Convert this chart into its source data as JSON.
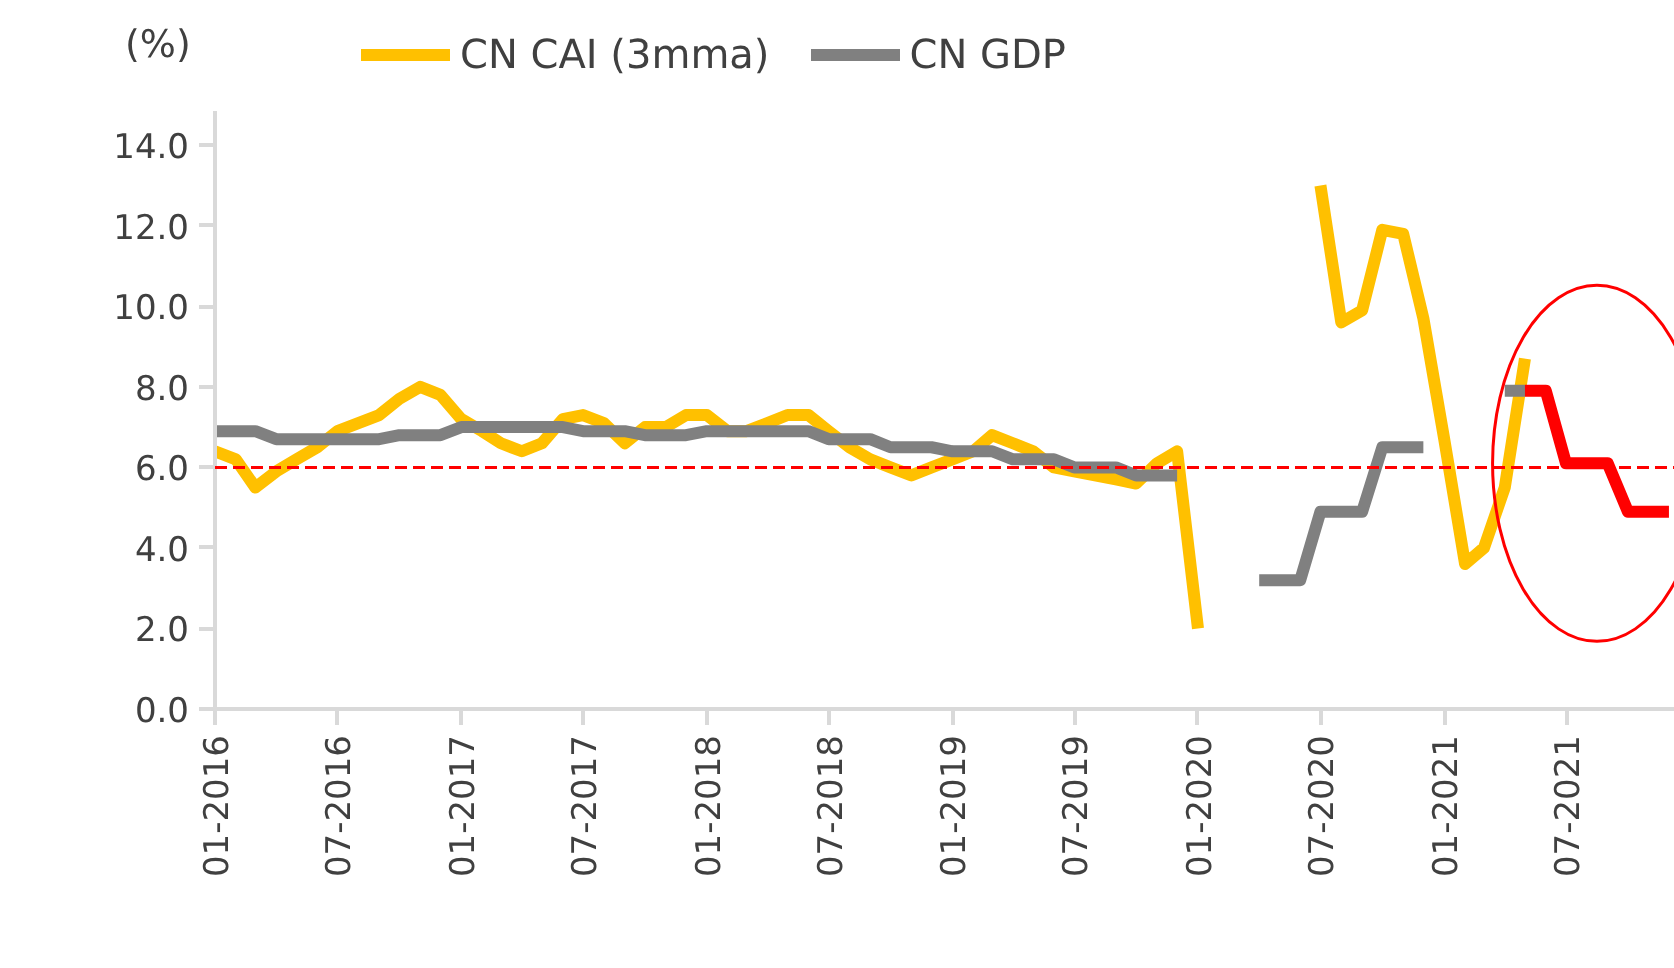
{
  "chart_data": {
    "type": "line",
    "ylabel": "(%)",
    "x": [
      "2016-01",
      "2016-02",
      "2016-03",
      "2016-04",
      "2016-05",
      "2016-06",
      "2016-07",
      "2016-08",
      "2016-09",
      "2016-10",
      "2016-11",
      "2016-12",
      "2017-01",
      "2017-02",
      "2017-03",
      "2017-04",
      "2017-05",
      "2017-06",
      "2017-07",
      "2017-08",
      "2017-09",
      "2017-10",
      "2017-11",
      "2017-12",
      "2018-01",
      "2018-02",
      "2018-03",
      "2018-04",
      "2018-05",
      "2018-06",
      "2018-07",
      "2018-08",
      "2018-09",
      "2018-10",
      "2018-11",
      "2018-12",
      "2019-01",
      "2019-02",
      "2019-03",
      "2019-04",
      "2019-05",
      "2019-06",
      "2019-07",
      "2019-08",
      "2019-09",
      "2019-10",
      "2019-11",
      "2019-12",
      "2020-01",
      "2020-02",
      "2020-03",
      "2020-04",
      "2020-05",
      "2020-06",
      "2020-07",
      "2020-08",
      "2020-09",
      "2020-10",
      "2020-11",
      "2020-12",
      "2021-01",
      "2021-02",
      "2021-03",
      "2021-04",
      "2021-05"
    ],
    "series": [
      {
        "name": "CN CAI (3mma)",
        "color": "#ffc000",
        "values": [
          6.4,
          6.2,
          5.5,
          5.9,
          6.2,
          6.5,
          6.9,
          7.1,
          7.3,
          7.7,
          8.0,
          7.8,
          7.2,
          6.9,
          6.6,
          6.4,
          6.6,
          7.2,
          7.3,
          7.1,
          6.6,
          7.0,
          7.0,
          7.3,
          7.3,
          6.9,
          6.9,
          7.1,
          7.3,
          7.3,
          6.9,
          6.5,
          6.2,
          6.0,
          5.8,
          6.0,
          6.2,
          6.4,
          6.8,
          6.6,
          6.4,
          6.0,
          5.9,
          5.8,
          5.7,
          5.6,
          6.1,
          6.4,
          2.0,
          null,
          null,
          null,
          null,
          null,
          13.0,
          9.6,
          9.9,
          11.9,
          11.8,
          9.7,
          6.7,
          3.6,
          4.0,
          5.5,
          8.7
        ]
      },
      {
        "name": "CN GDP",
        "color": "#808080",
        "values": [
          6.9,
          6.9,
          6.9,
          6.7,
          6.7,
          6.7,
          6.7,
          6.7,
          6.7,
          6.8,
          6.8,
          6.8,
          7.0,
          7.0,
          7.0,
          7.0,
          7.0,
          7.0,
          6.9,
          6.9,
          6.9,
          6.8,
          6.8,
          6.8,
          6.9,
          6.9,
          6.9,
          6.9,
          6.9,
          6.9,
          6.7,
          6.7,
          6.7,
          6.5,
          6.5,
          6.5,
          6.4,
          6.4,
          6.4,
          6.2,
          6.2,
          6.2,
          6.0,
          6.0,
          6.0,
          5.8,
          5.8,
          5.8,
          null,
          null,
          null,
          3.2,
          3.2,
          3.2,
          4.9,
          4.9,
          4.9,
          6.5,
          6.5,
          6.5,
          null,
          null,
          null,
          7.9,
          7.9
        ]
      },
      {
        "color": "#ff0000",
        "x": [
          "2021-05",
          "2021-06",
          "2021-07",
          "2021-08",
          "2021-09",
          "2021-10",
          "2021-11",
          "2021-12"
        ],
        "values": [
          7.9,
          7.9,
          6.1,
          6.1,
          6.1,
          4.9,
          4.9,
          4.9
        ]
      }
    ],
    "xlim": [
      "2016-01",
      "2021-12-10"
    ],
    "xticks": [
      {
        "value": "2016-01",
        "label": "01-2016"
      },
      {
        "value": "2016-07",
        "label": "07-2016"
      },
      {
        "value": "2017-01",
        "label": "01-2017"
      },
      {
        "value": "2017-07",
        "label": "07-2017"
      },
      {
        "value": "2018-01",
        "label": "01-2018"
      },
      {
        "value": "2018-07",
        "label": "07-2018"
      },
      {
        "value": "2019-01",
        "label": "01-2019"
      },
      {
        "value": "2019-07",
        "label": "07-2019"
      },
      {
        "value": "2020-01",
        "label": "01-2020"
      },
      {
        "value": "2020-07",
        "label": "07-2020"
      },
      {
        "value": "2021-01",
        "label": "01-2021"
      },
      {
        "value": "2021-07",
        "label": "07-2021"
      }
    ],
    "ylim": [
      0,
      14.85
    ],
    "yticks": [
      {
        "value": 0,
        "label": "0.0"
      },
      {
        "value": 2,
        "label": "2.0"
      },
      {
        "value": 4,
        "label": "4.0"
      },
      {
        "value": 6,
        "label": "6.0"
      },
      {
        "value": 8,
        "label": "8.0"
      },
      {
        "value": 10,
        "label": "10.0"
      },
      {
        "value": 12,
        "label": "12.0"
      },
      {
        "value": 14,
        "label": "14.0"
      }
    ],
    "ref_lines": [
      {
        "axis": "y",
        "value": 6,
        "color": "#ff0000",
        "line_style": "dashed"
      }
    ],
    "grid": false,
    "legend": "top",
    "line_style": "solid",
    "marker": "none"
  }
}
